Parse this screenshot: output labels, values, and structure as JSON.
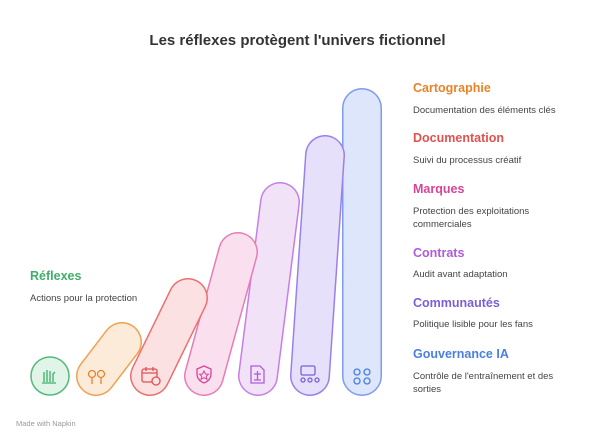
{
  "title": "Les réflexes protègent l'univers fictionnel",
  "left_item": {
    "label": "Réflexes",
    "description": "Actions pour la protection"
  },
  "items": [
    {
      "label": "Cartographie",
      "description": "Documentation des éléments clés"
    },
    {
      "label": "Documentation",
      "description": "Suivi du processus créatif"
    },
    {
      "label": "Marques",
      "description": "Protection des exploitations commerciales"
    },
    {
      "label": "Contrats",
      "description": "Audit avant adaptation"
    },
    {
      "label": "Communautés",
      "description": "Politique lisible pour les fans"
    },
    {
      "label": "Gouvernance IA",
      "description": "Contrôle de l'entraînement et des sorties"
    }
  ],
  "footer": "Made with Napkin"
}
